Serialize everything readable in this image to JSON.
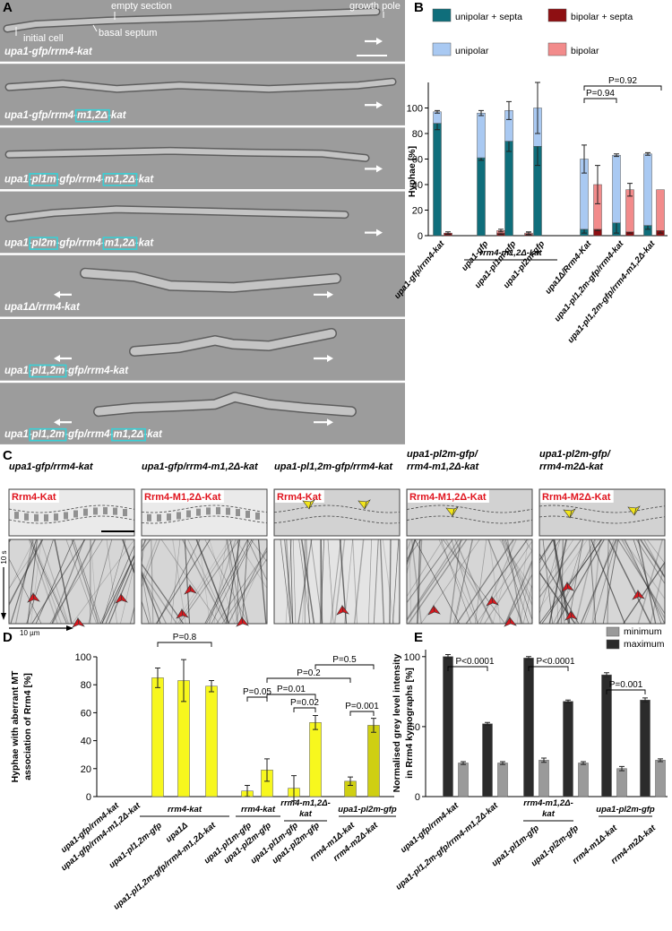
{
  "panel_a": {
    "letter": "A",
    "annotations": [
      "initial cell",
      "basal septum",
      "empty section",
      "growth pole"
    ],
    "strains": [
      [
        "upa1-gfp/rrm4-kat"
      ],
      [
        "upa1-gfp/rrm4-",
        {
          "text": "m1,2Δ",
          "boxed": true
        },
        "-kat"
      ],
      [
        "upa1-",
        {
          "text": "pl1m",
          "boxed": true
        },
        "-gfp/rrm4-",
        {
          "text": "m1,2Δ",
          "boxed": true
        },
        "-kat"
      ],
      [
        "upa1-",
        {
          "text": "pl2m",
          "boxed": true
        },
        "-gfp/rrm4-",
        {
          "text": "m1,2Δ",
          "boxed": true
        },
        "-kat"
      ],
      [
        "upa1Δ/rrm4-kat"
      ],
      [
        "upa1-",
        {
          "text": "pl1,2m",
          "boxed": true
        },
        "-gfp/rrm4-kat"
      ],
      [
        "upa1-",
        {
          "text": "pl1,2m",
          "boxed": true
        },
        "-gfp/rrm4-",
        {
          "text": "m1,2Δ",
          "boxed": true
        },
        "-kat"
      ]
    ]
  },
  "panel_c": {
    "letter": "C",
    "columns": [
      {
        "title": [
          "upa1-gfp/rrm4-kat"
        ],
        "protein": "Rrm4-Kat"
      },
      {
        "title": [
          "upa1-gfp/rrm4-m1,2Δ-kat"
        ],
        "protein": "Rrm4-M1,2Δ-Kat"
      },
      {
        "title": [
          "upa1-pl1,2m-gfp/rrm4-kat"
        ],
        "protein": "Rrm4-Kat"
      },
      {
        "title": [
          "upa1-pl2m-gfp/",
          "rrm4-m1,2Δ-kat"
        ],
        "protein": "Rrm4-M1,2Δ-Kat"
      },
      {
        "title": [
          "upa1-pl2m-gfp/",
          "rrm4-m2Δ-kat"
        ],
        "protein": "Rrm4-M2Δ-Kat"
      }
    ],
    "time_scale": "10 s",
    "length_scale": "10 µm"
  },
  "chart_data": [
    {
      "panel": "B",
      "type": "bar",
      "stacked": true,
      "ylabel": "Hyphae [%]",
      "ylim": [
        0,
        120
      ],
      "yticks": [
        0,
        20,
        40,
        60,
        80,
        100
      ],
      "categories": [
        "upa1-gfp/rrm4-kat",
        "upa1-gfp",
        "upa1-pl1m-gfp",
        "upa1-pl2m-gfp",
        "upa1Δ/Rrm4-Kat",
        "upa1-pl1,2m-gfp/rrm4-kat",
        "upa1-pl1,2m-gfp/rrm4-m1,2Δ-kat"
      ],
      "series": [
        {
          "name": "unipolar + septa",
          "color": "#0f6e7b",
          "values": [
            88,
            61,
            74,
            70,
            5,
            10,
            8
          ],
          "errors": [
            5,
            2,
            8,
            15,
            3,
            8,
            3
          ]
        },
        {
          "name": "unipolar",
          "color": "#a9c9f2",
          "values": [
            9,
            35,
            24,
            30,
            55,
            53,
            56
          ],
          "errors": [
            1,
            2,
            7,
            20,
            11,
            1,
            1
          ]
        },
        {
          "name": "bipolar + septa",
          "color": "#8e0f12",
          "values": [
            2,
            2,
            1,
            0,
            5,
            3,
            4
          ],
          "errors": [
            1,
            1,
            1,
            0,
            1,
            1,
            2
          ]
        },
        {
          "name": "bipolar",
          "color": "#f28b8b",
          "values": [
            0,
            2,
            1,
            0,
            35,
            33,
            32
          ],
          "errors": [
            0,
            1,
            1,
            0,
            15,
            5,
            0
          ]
        }
      ],
      "group_labels": [
        [
          "rrm4-m1,2Δ-kat"
        ]
      ],
      "annotations": [
        "P=0.94",
        "P=0.92"
      ]
    },
    {
      "panel": "D",
      "type": "bar",
      "ylabel": [
        "Hyphae with aberrant MT",
        "association of Rrm4 [%]"
      ],
      "ylim": [
        0,
        100
      ],
      "yticks": [
        0,
        20,
        40,
        60,
        80,
        100
      ],
      "categories": [
        "upa1-gfp/rrm4-kat",
        "upa1-gfp/rrm4-m1,2Δ-kat",
        "upa1-pl1,2m-gfp",
        "upa1Δ",
        "upa1-pl1,2m-gfp/rrm4-m1,2Δ-kat",
        "upa1-pl1m-gfp",
        "upa1-pl2m-gfp",
        "upa1-pl1m-gfp",
        "upa1-pl2m-gfp",
        "rrm4-m1Δ-kat",
        "rrm4-m2Δ-kat"
      ],
      "values": [
        0,
        0,
        85,
        83,
        79,
        4,
        19,
        6,
        53,
        11,
        51
      ],
      "errors": [
        0,
        0,
        7,
        15,
        4,
        4,
        8,
        9,
        5,
        3,
        5
      ],
      "colors": [
        "#f7f71e",
        "#f7f71e",
        "#f7f71e",
        "#f7f71e",
        "#f7f71e",
        "#f7f71e",
        "#f7f71e",
        "#f7f71e",
        "#f7f71e",
        "#cfcf12",
        "#cfcf12"
      ],
      "group_labels": [
        [
          "rrm4-kat"
        ],
        [
          "rrm4-kat"
        ],
        [
          "rrm4-m1,2Δ-",
          "kat"
        ],
        [
          "upa1-pl2m-gfp"
        ]
      ],
      "annotations": [
        "P=0.8",
        "P=0.05",
        "P=0.02",
        "P=0.01",
        "P=0.2",
        "P=0.5",
        "P=0.001"
      ]
    },
    {
      "panel": "E",
      "type": "bar",
      "ylabel": [
        "Normalised grey level intensity",
        "in Rrm4 kymographs [%]"
      ],
      "ylim": [
        0,
        105
      ],
      "yticks": [
        0,
        50,
        100
      ],
      "categories": [
        "upa1-gfp/rrm4-kat",
        "upa1-pl1,2m-gfp/rrm4-m1,2Δ-kat",
        "upa1-pl1m-gfp",
        "upa1-pl2m-gfp",
        "rrm4-m1Δ-kat",
        "rrm4-m2Δ-kat"
      ],
      "series": [
        {
          "name": "minimum",
          "color": "#9a9a9a",
          "values": [
            24,
            24,
            26,
            24,
            20,
            26
          ],
          "errors": [
            1,
            1,
            1.5,
            1,
            1.5,
            1
          ]
        },
        {
          "name": "maximum",
          "color": "#2b2b2b",
          "values": [
            100,
            52,
            99,
            68,
            87,
            69
          ],
          "errors": [
            1.5,
            1,
            1,
            1,
            1.5,
            1.5
          ]
        }
      ],
      "group_labels": [
        [
          "rrm4-m1,2Δ-",
          "kat"
        ],
        [
          "upa1-pl2m-gfp"
        ]
      ],
      "annotations": [
        "P<0.0001",
        "P<0.0001",
        "P=0.001"
      ]
    }
  ]
}
